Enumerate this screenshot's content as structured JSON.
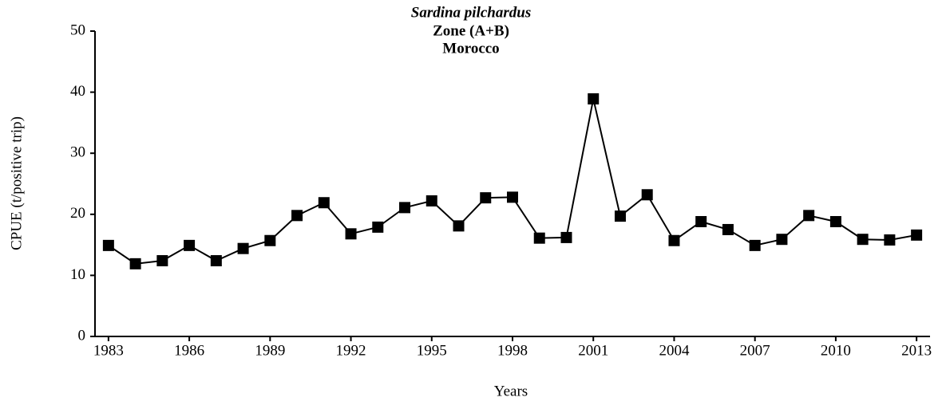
{
  "chart_data": {
    "type": "line",
    "title": [
      "Sardina pilchardus",
      "Zone (A+B)",
      "Morocco"
    ],
    "xlabel": "Years",
    "ylabel": "CPUE (t/positive trip)",
    "x": [
      1983,
      1984,
      1985,
      1986,
      1987,
      1988,
      1989,
      1990,
      1991,
      1992,
      1993,
      1994,
      1995,
      1996,
      1997,
      1998,
      1999,
      2000,
      2001,
      2002,
      2003,
      2004,
      2005,
      2006,
      2007,
      2008,
      2009,
      2010,
      2011,
      2012,
      2013
    ],
    "series": [
      {
        "name": "CPUE",
        "color": "#000000",
        "values": [
          14.9,
          11.9,
          12.4,
          14.9,
          12.4,
          14.4,
          15.7,
          19.8,
          21.9,
          16.8,
          17.9,
          21.1,
          22.2,
          18.1,
          22.7,
          22.8,
          16.1,
          16.2,
          38.9,
          19.7,
          23.2,
          15.7,
          18.8,
          17.5,
          14.9,
          15.9,
          19.8,
          18.8,
          15.9,
          15.8,
          16.6
        ]
      }
    ],
    "xlim": [
      1982.5,
      2013.5
    ],
    "xticks": [
      1983,
      1986,
      1989,
      1992,
      1995,
      1998,
      2001,
      2004,
      2007,
      2010,
      2013
    ],
    "ylim": [
      0,
      50
    ],
    "yticks": [
      0,
      10,
      20,
      30,
      40,
      50
    ],
    "grid": false
  }
}
